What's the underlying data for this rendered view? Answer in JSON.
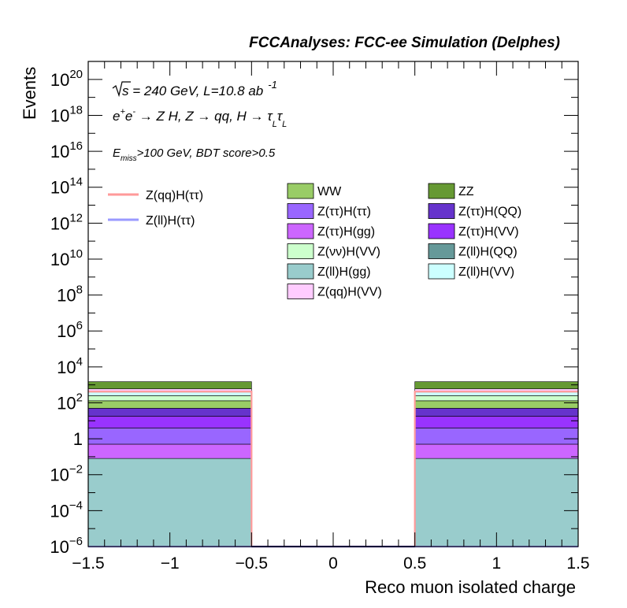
{
  "header": {
    "title": "FCCAnalyses: FCC-ee Simulation (Delphes)"
  },
  "annotations": {
    "sqrt_s": "s",
    "energy_lumi": " = 240 GeV, L=10.8 ab",
    "lumi_exp": "-1",
    "process_prefix": "e",
    "process_plus": "+",
    "process_e2": "e",
    "process_minus": "-",
    "process_main": " → Z H, Z  → qq, H  → ",
    "tau": "τ",
    "sub_L": "L",
    "cut_E": "E",
    "cut_sub": "miss",
    "cut_rest": ">100 GeV, BDT score>0.5"
  },
  "legend": {
    "signals": [
      {
        "label": "Z(qq)H(ττ)",
        "color": "#ff9a9a"
      },
      {
        "label": "Z(ll)H(ττ)",
        "color": "#9a9aff"
      }
    ],
    "backgrounds": [
      {
        "label": "WW",
        "color": "#99cc66"
      },
      {
        "label": "ZZ",
        "color": "#669933"
      },
      {
        "label": "Z(ττ)H(ττ)",
        "color": "#9966ff"
      },
      {
        "label": "Z(ττ)H(QQ)",
        "color": "#6633cc"
      },
      {
        "label": "Z(ττ)H(gg)",
        "color": "#cc66ff"
      },
      {
        "label": "Z(ττ)H(VV)",
        "color": "#9933ff"
      },
      {
        "label": "Z(νν)H(VV)",
        "color": "#ccffcc"
      },
      {
        "label": "Z(ll)H(QQ)",
        "color": "#669999"
      },
      {
        "label": "Z(ll)H(gg)",
        "color": "#99cccc"
      },
      {
        "label": "Z(ll)H(VV)",
        "color": "#ccffff"
      },
      {
        "label": "Z(qq)H(VV)",
        "color": "#ffccff"
      }
    ]
  },
  "chart_data": {
    "type": "bar",
    "title": "FCCAnalyses: FCC-ee Simulation (Delphes)",
    "xlabel": "Reco muon isolated charge",
    "ylabel": "Events",
    "xlim": [
      -1.5,
      1.5
    ],
    "ylim": [
      1e-06,
      1e+21
    ],
    "yscale": "log",
    "bins": [
      [
        -1.5,
        -0.5
      ],
      [
        -0.5,
        0.5
      ],
      [
        0.5,
        1.5
      ]
    ],
    "x_ticks": [
      "−1.5",
      "−1",
      "−0.5",
      "0",
      "0.5",
      "1",
      "1.5"
    ],
    "y_ticks": [
      {
        "base": "10",
        "exp": "−6"
      },
      {
        "base": "10",
        "exp": "−4"
      },
      {
        "base": "10",
        "exp": "−2"
      },
      {
        "base": "1",
        "exp": ""
      },
      {
        "base": "10",
        "exp": "2"
      },
      {
        "base": "10",
        "exp": "4"
      },
      {
        "base": "10",
        "exp": "6"
      },
      {
        "base": "10",
        "exp": "8"
      },
      {
        "base": "10",
        "exp": "10"
      },
      {
        "base": "10",
        "exp": "12"
      },
      {
        "base": "10",
        "exp": "14"
      },
      {
        "base": "10",
        "exp": "16"
      },
      {
        "base": "10",
        "exp": "18"
      },
      {
        "base": "10",
        "exp": "20"
      }
    ],
    "stack_order_bottom_to_top": [
      "Z(ll)H(gg)",
      "Z(ττ)H(gg)",
      "Z(ττ)H(ττ)",
      "Z(ττ)H(VV)",
      "Z(ττ)H(QQ)",
      "WW",
      "Z(νν)H(VV)",
      "Z(ll)H(VV)",
      "Z(qq)H(VV)",
      "ZZ"
    ],
    "stack_cumulative_bottom_to_top": [
      0.08,
      0.5,
      4,
      18,
      50,
      130,
      250,
      400,
      600,
      1500
    ],
    "series": [
      {
        "name": "Z(ll)H(gg)",
        "values": [
          0.08,
          0,
          0.08
        ]
      },
      {
        "name": "Z(ττ)H(gg)",
        "values": [
          0.42,
          0,
          0.42
        ]
      },
      {
        "name": "Z(ττ)H(ττ)",
        "values": [
          3.5,
          0,
          3.5
        ]
      },
      {
        "name": "Z(ττ)H(VV)",
        "values": [
          14,
          0,
          14
        ]
      },
      {
        "name": "Z(ττ)H(QQ)",
        "values": [
          32,
          0,
          32
        ]
      },
      {
        "name": "WW",
        "values": [
          80,
          0,
          80
        ]
      },
      {
        "name": "Z(νν)H(VV)",
        "values": [
          120,
          0,
          120
        ]
      },
      {
        "name": "Z(ll)H(VV)",
        "values": [
          150,
          0,
          150
        ]
      },
      {
        "name": "Z(qq)H(VV)",
        "values": [
          200,
          0,
          200
        ]
      },
      {
        "name": "ZZ",
        "values": [
          900,
          0,
          900
        ]
      },
      {
        "name": "Z(qq)H(ττ)",
        "values": [
          420,
          0,
          420
        ]
      },
      {
        "name": "Z(ll)H(ττ)",
        "values": [
          1e-06,
          0,
          1e-06
        ]
      }
    ]
  }
}
